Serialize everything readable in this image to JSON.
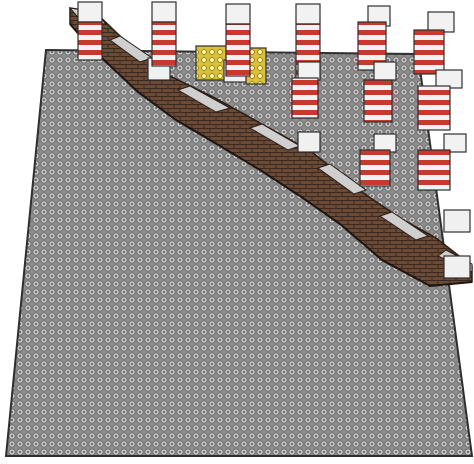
{
  "scene": {
    "background": "#ffffff",
    "plate_color": "#8e8e8e",
    "stud_color": "#c9c9c9",
    "stud_hole_color": "#6c6c6c",
    "outline_color": "#2f2f2f",
    "wall_brick_color": "#6b4a36",
    "wall_brick_dark": "#3c2a21",
    "pillar_red": "#c63a2c",
    "pillar_white": "#f2f2f2",
    "pillar_dark_red": "#7a1f18",
    "tile_yellow": "#d9c23a",
    "tile_white": "#f0f0f0"
  }
}
